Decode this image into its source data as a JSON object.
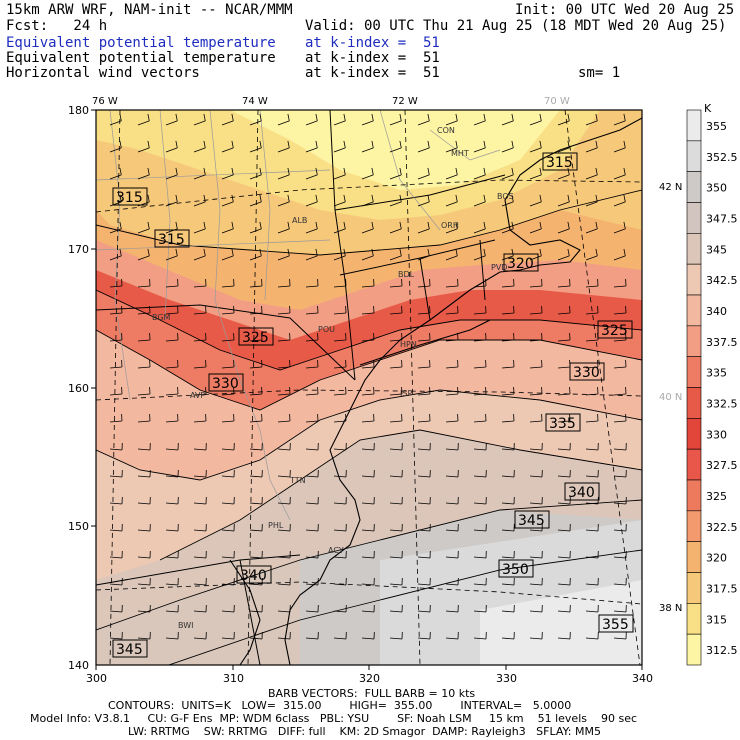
{
  "header": {
    "model": "15km ARW WRF, NAM-init -- NCAR/MMM",
    "init": "Init: 00 UTC Wed 20 Aug 25",
    "fcst": "Fcst:   24 h",
    "valid": "Valid: 00 UTC Thu 21 Aug 25 (18 MDT Wed 20 Aug 25)",
    "lines": [
      {
        "field": "Equivalent potential temperature",
        "level": "at k-index =  51"
      },
      {
        "field": "Equivalent potential temperature",
        "level": "at k-index =  51"
      },
      {
        "field": "Horizontal wind vectors",
        "level": "at k-index =  51"
      }
    ],
    "smoothing": "sm= 1"
  },
  "map": {
    "lon_labels": [
      "76 W",
      "74 W",
      "72 W",
      "70 W"
    ],
    "lat_labels": [
      "42 N",
      "40 N",
      "38 N"
    ],
    "x_ticks": [
      "300",
      "310",
      "320",
      "330",
      "340"
    ],
    "y_ticks": [
      "180",
      "170",
      "160",
      "150",
      "140"
    ],
    "cities": [
      "CON",
      "MHT",
      "BOS",
      "ALB",
      "ORH",
      "BDL",
      "PVD",
      "BGM",
      "POU",
      "HPN",
      "AVP",
      "ISP",
      "TTN",
      "PHL",
      "ACY",
      "BWI"
    ],
    "contour_labels": [
      "315",
      "315",
      "315",
      "320",
      "325",
      "325",
      "330",
      "330",
      "335",
      "340",
      "345",
      "350",
      "355",
      "345",
      "340"
    ]
  },
  "colorbar": {
    "unit": "K",
    "levels": [
      "355",
      "352.5",
      "350",
      "347.5",
      "345",
      "342.5",
      "340",
      "337.5",
      "335",
      "332.5",
      "330",
      "327.5",
      "325",
      "322.5",
      "320",
      "317.5",
      "315",
      "312.5"
    ],
    "colors": [
      "#ebebeb",
      "#dcdcdc",
      "#cdcac8",
      "#d2c5bf",
      "#dcc6b9",
      "#edc9b4",
      "#f3b8a0",
      "#f29e84",
      "#ee7b63",
      "#e85a48",
      "#e2453a",
      "#e8574a",
      "#ee7a5d",
      "#f39a6e",
      "#f5b370",
      "#f6c87a",
      "#f9df85",
      "#fdf4a4"
    ]
  },
  "footer": {
    "barb": "BARB VECTORS:  FULL BARB = 10 kts",
    "contours": "CONTOURS:  UNITS=K   LOW=  315.00        HIGH=  355.00        INTERVAL=   5.0000",
    "model1": "Model Info: V3.8.1     CU: G-F Ens  MP: WDM 6class   PBL: YSU        SF: Noah LSM     15 km    51 levels    90 sec",
    "model2": "LW: RRTMG    SW: RRTMG   DIFF: full    KM: 2D Smagor  DAMP: Rayleigh3   SFLAY: MM5"
  }
}
